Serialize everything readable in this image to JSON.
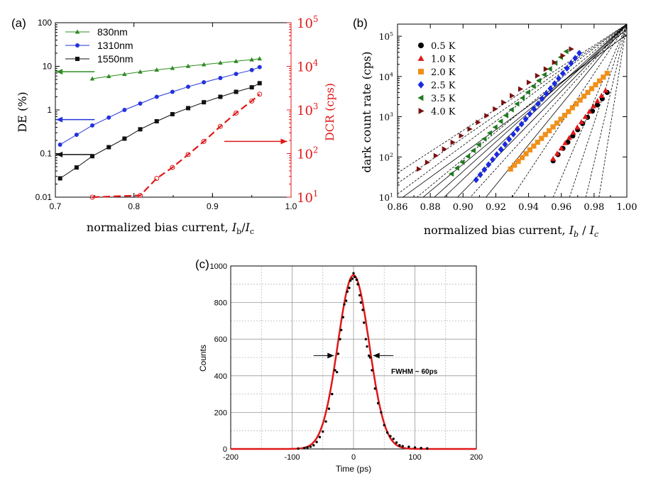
{
  "chart_data": [
    {
      "panel_label": "(a)",
      "type": "line",
      "xlabel": "normalized bias current, ",
      "xlabel_var_1": "I",
      "xlabel_sub_1": "b",
      "xlabel_sep": "/",
      "xlabel_var_2": "I",
      "xlabel_sub_2": "c",
      "ylabel": "DE (%)",
      "y2label": "DCR (cps)",
      "xlim": [
        0.7,
        1.0
      ],
      "ylim": [
        0.01,
        100
      ],
      "y2lim": [
        10,
        100000
      ],
      "yscale": "log",
      "y2scale": "log",
      "xticks": [
        "0.7",
        "0.8",
        "0.9",
        "1.0"
      ],
      "yticks": [
        "0.01",
        "0.1",
        "1",
        "10",
        "100"
      ],
      "y2ticks_base": [
        "10",
        "10",
        "10",
        "10",
        "10"
      ],
      "y2ticks_exp": [
        "1",
        "2",
        "3",
        "4",
        "5"
      ],
      "legend_position": "top-left",
      "series": [
        {
          "name": "830nm",
          "color": "#2e8b22",
          "marker": "triangle",
          "x": [
            0.747,
            0.768,
            0.788,
            0.808,
            0.829,
            0.849,
            0.869,
            0.889,
            0.91,
            0.93,
            0.95,
            0.96
          ],
          "y": [
            5.2,
            5.9,
            6.6,
            7.5,
            8.3,
            9.1,
            10.1,
            11.0,
            12.0,
            13.1,
            14.2,
            15.0
          ]
        },
        {
          "name": "1310nm",
          "color": "#2233dd",
          "marker": "circle",
          "x": [
            0.706,
            0.727,
            0.747,
            0.768,
            0.788,
            0.808,
            0.829,
            0.849,
            0.869,
            0.889,
            0.91,
            0.93,
            0.95,
            0.96
          ],
          "y": [
            0.16,
            0.27,
            0.44,
            0.67,
            1.0,
            1.4,
            2.0,
            2.6,
            3.4,
            4.3,
            5.4,
            6.7,
            8.2,
            9.6
          ]
        },
        {
          "name": "1550nm",
          "color": "#111111",
          "marker": "square",
          "x": [
            0.706,
            0.727,
            0.747,
            0.768,
            0.788,
            0.808,
            0.829,
            0.849,
            0.869,
            0.889,
            0.91,
            0.93,
            0.95,
            0.96
          ],
          "y": [
            0.027,
            0.048,
            0.087,
            0.14,
            0.22,
            0.36,
            0.55,
            0.8,
            1.1,
            1.5,
            2.0,
            2.6,
            3.3,
            4.1
          ]
        },
        {
          "name": "DCR",
          "color": "#e01818",
          "marker": "open-circle",
          "axis": "right",
          "dashed": true,
          "x": [
            0.747,
            0.808,
            0.829,
            0.849,
            0.869,
            0.889,
            0.91,
            0.93,
            0.95,
            0.96
          ],
          "y": [
            10,
            11,
            27,
            48,
            95,
            190,
            420,
            850,
            1600,
            2300
          ]
        }
      ],
      "arrows": [
        {
          "color": "#2e8b22",
          "x_from": 0.75,
          "x_to": 0.701,
          "y": 7.5,
          "axis": "left"
        },
        {
          "color": "#2233dd",
          "x_from": 0.75,
          "x_to": 0.701,
          "y": 0.6,
          "axis": "left"
        },
        {
          "color": "#111111",
          "x_from": 0.747,
          "x_to": 0.701,
          "y": 0.095,
          "axis": "left"
        },
        {
          "color": "#e01818",
          "x_from": 0.915,
          "x_to": 0.995,
          "y": 190,
          "axis": "right"
        }
      ]
    },
    {
      "panel_label": "(b)",
      "type": "scatter",
      "xlabel": "normalized bias current, ",
      "xlabel_var_1": "I",
      "xlabel_sub_1": "b",
      "xlabel_sep": " / ",
      "xlabel_var_2": "I",
      "xlabel_sub_2": "c",
      "ylabel": "dark count rate (cps)",
      "xlim": [
        0.86,
        1.0
      ],
      "ylim": [
        10,
        200000
      ],
      "yscale": "log",
      "xticks": [
        "0.86",
        "0.88",
        "0.90",
        "0.92",
        "0.94",
        "0.96",
        "0.98",
        "1.00"
      ],
      "yticks_base": [
        "10",
        "10",
        "10",
        "10",
        "10"
      ],
      "yticks_exp": [
        "1",
        "2",
        "3",
        "4",
        "5"
      ],
      "legend_position": "top-left",
      "series": [
        {
          "name": "0.5 K",
          "color": "#000000",
          "marker": "circle",
          "x_start": 0.955,
          "x_end": 0.988,
          "y_start": 80,
          "y_end": 4000,
          "n": 12
        },
        {
          "name": "1.0 K",
          "color": "#e01818",
          "marker": "triangle",
          "x_start": 0.955,
          "x_end": 0.987,
          "y_start": 90,
          "y_end": 4500,
          "n": 14
        },
        {
          "name": "2.0 K",
          "color": "#f0901a",
          "marker": "square",
          "x_start": 0.929,
          "x_end": 0.988,
          "y_start": 50,
          "y_end": 12000,
          "n": 26
        },
        {
          "name": "2.5 K",
          "color": "#1a2ae0",
          "marker": "diamond",
          "x_start": 0.908,
          "x_end": 0.971,
          "y_start": 27,
          "y_end": 38000,
          "n": 26
        },
        {
          "name": "3.5 K",
          "color": "#1e7a1e",
          "marker": "triangle-left",
          "x_start": 0.893,
          "x_end": 0.963,
          "y_start": 38,
          "y_end": 42000,
          "n": 22
        },
        {
          "name": "4.0 K",
          "color": "#7a1010",
          "marker": "triangle-right",
          "x_start": 0.873,
          "x_end": 0.966,
          "y_start": 50,
          "y_end": 48000,
          "n": 19
        }
      ],
      "solid_fit_lines": [
        [
          0.86,
          8,
          1.0,
          110000
        ],
        [
          0.86,
          3,
          1.0,
          150000
        ],
        [
          0.86,
          1.5,
          1.0,
          200000
        ],
        [
          0.86,
          0.8,
          1.0,
          200000
        ],
        [
          0.86,
          0.3,
          1.0,
          200000
        ],
        [
          0.86,
          0.02,
          1.0,
          200000
        ]
      ],
      "dashed_fit_lines": [
        [
          0.86,
          40,
          1.0,
          200000
        ],
        [
          0.86,
          22,
          1.0,
          200000
        ],
        [
          0.86,
          12,
          1.0,
          200000
        ],
        [
          0.86,
          4,
          1.0,
          200000
        ],
        [
          0.86,
          0.1,
          1.0,
          200000
        ],
        [
          0.93,
          10,
          1.0,
          200000
        ],
        [
          0.955,
          10,
          1.0,
          200000
        ],
        [
          0.965,
          10,
          1.0,
          200000
        ],
        [
          0.975,
          10,
          1.0,
          200000
        ],
        [
          0.983,
          10,
          1.0,
          200000
        ]
      ]
    },
    {
      "panel_label": "(c)",
      "type": "scatter",
      "xlabel": "Time (ps)",
      "ylabel": "Counts",
      "xlim": [
        -200,
        200
      ],
      "ylim": [
        0,
        1000
      ],
      "xticks": [
        "-200",
        "-100",
        "0",
        "100",
        "200"
      ],
      "yticks": [
        "0",
        "200",
        "400",
        "600",
        "800",
        "1000"
      ],
      "grid": true,
      "annotation": "FWHM ~ 60ps",
      "fit": {
        "type": "gaussian",
        "amplitude": 950,
        "center": 0,
        "fwhm": 60,
        "color": "#e01818"
      },
      "points": {
        "color": "#000000",
        "x": [
          -90,
          -80,
          -75,
          -70,
          -65,
          -60,
          -55,
          -50,
          -45,
          -40,
          -35,
          -30,
          -27,
          -25,
          -22,
          -20,
          -17,
          -15,
          -12,
          -10,
          -7,
          -5,
          -2,
          0,
          2,
          5,
          7,
          10,
          12,
          15,
          17,
          20,
          22,
          25,
          27,
          30,
          35,
          40,
          45,
          50,
          55,
          60,
          65,
          70,
          75,
          80,
          90,
          100,
          110,
          120
        ],
        "y": [
          2,
          5,
          8,
          12,
          20,
          38,
          65,
          95,
          150,
          220,
          300,
          430,
          420,
          520,
          600,
          650,
          720,
          790,
          810,
          860,
          880,
          920,
          930,
          960,
          940,
          925,
          900,
          840,
          800,
          760,
          690,
          600,
          560,
          510,
          500,
          430,
          330,
          250,
          200,
          130,
          90,
          70,
          55,
          35,
          20,
          15,
          12,
          8,
          5,
          3
        ]
      },
      "fwhm_arrows": [
        {
          "x_from": -65,
          "x_to": -32,
          "y": 510
        },
        {
          "x_from": 65,
          "x_to": 32,
          "y": 510
        }
      ]
    }
  ]
}
